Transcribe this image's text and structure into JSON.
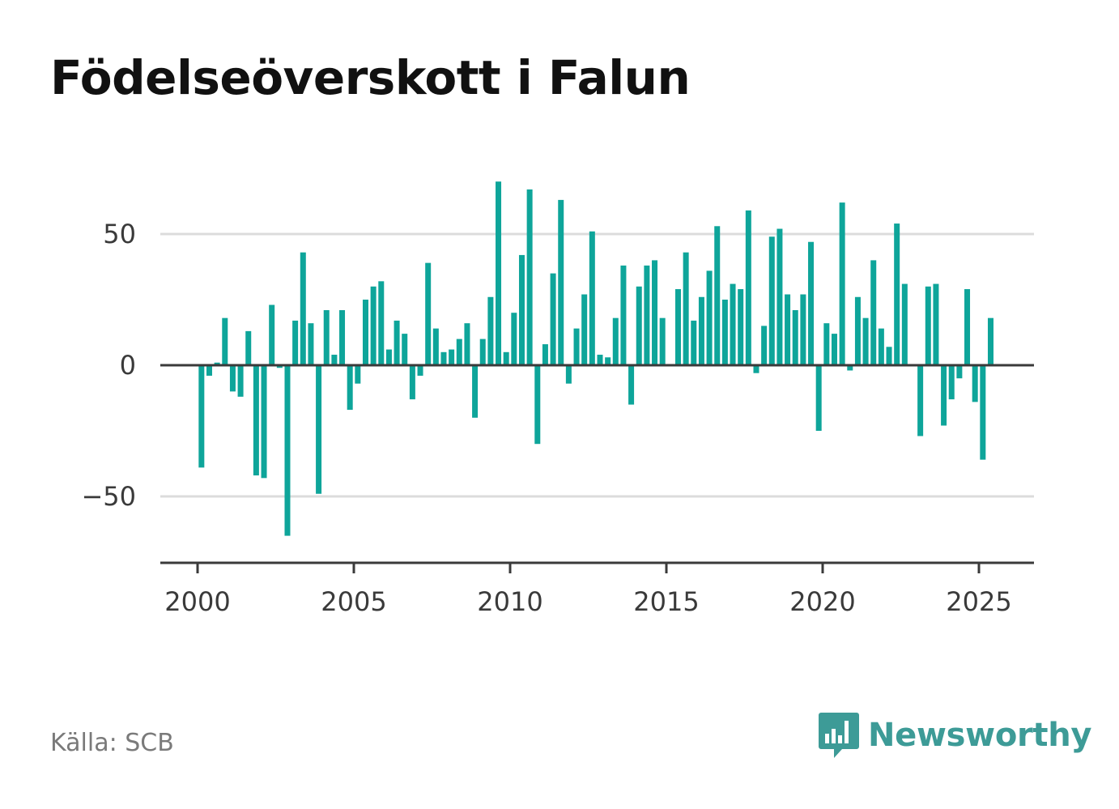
{
  "title": "Födelseöverskott i Falun",
  "source": "Källa: SCB",
  "logo_text": "Newsworthy",
  "logo_icon": "bar-chart-speech-bubble-icon",
  "colors": {
    "bar": "#0ea59a",
    "grid": "#dcdcdc",
    "axis": "#3a3a3a",
    "brand": "#3d9b97"
  },
  "chart_data": {
    "type": "bar",
    "title": "Födelseöverskott i Falun",
    "xlabel": "",
    "ylabel": "",
    "x_tick_labels": [
      "2000",
      "2005",
      "2010",
      "2015",
      "2020",
      "2025"
    ],
    "x_ticks": [
      2000,
      2005,
      2010,
      2015,
      2020,
      2025
    ],
    "y_tick_labels": [
      "50",
      "0",
      "−50"
    ],
    "y_ticks": [
      50,
      0,
      -50
    ],
    "xlim": [
      1998.8,
      2026.8
    ],
    "ylim": [
      -75,
      75
    ],
    "grid": true,
    "x": [
      2000.125,
      2000.375,
      2000.625,
      2000.875,
      2001.125,
      2001.375,
      2001.625,
      2001.875,
      2002.125,
      2002.375,
      2002.625,
      2002.875,
      2003.125,
      2003.375,
      2003.625,
      2003.875,
      2004.125,
      2004.375,
      2004.625,
      2004.875,
      2005.125,
      2005.375,
      2005.625,
      2005.875,
      2006.125,
      2006.375,
      2006.625,
      2006.875,
      2007.125,
      2007.375,
      2007.625,
      2007.875,
      2008.125,
      2008.375,
      2008.625,
      2008.875,
      2009.125,
      2009.375,
      2009.625,
      2009.875,
      2010.125,
      2010.375,
      2010.625,
      2010.875,
      2011.125,
      2011.375,
      2011.625,
      2011.875,
      2012.125,
      2012.375,
      2012.625,
      2012.875,
      2013.125,
      2013.375,
      2013.625,
      2013.875,
      2014.125,
      2014.375,
      2014.625,
      2014.875,
      2015.125,
      2015.375,
      2015.625,
      2015.875,
      2016.125,
      2016.375,
      2016.625,
      2016.875,
      2017.125,
      2017.375,
      2017.625,
      2017.875,
      2018.125,
      2018.375,
      2018.625,
      2018.875,
      2019.125,
      2019.375,
      2019.625,
      2019.875,
      2020.125,
      2020.375,
      2020.625,
      2020.875,
      2021.125,
      2021.375,
      2021.625,
      2021.875,
      2022.125,
      2022.375,
      2022.625,
      2022.875,
      2023.125,
      2023.375,
      2023.625,
      2023.875,
      2024.125,
      2024.375,
      2024.625,
      2024.875,
      2025.125,
      2025.375
    ],
    "values": [
      -39,
      -4,
      1,
      18,
      -10,
      -12,
      13,
      -42,
      -43,
      23,
      -1,
      -65,
      17,
      43,
      16,
      -49,
      21,
      4,
      21,
      -17,
      -7,
      25,
      30,
      32,
      6,
      17,
      12,
      -13,
      -4,
      39,
      14,
      5,
      6,
      10,
      16,
      -20,
      10,
      26,
      70,
      5,
      20,
      42,
      67,
      -30,
      8,
      35,
      63,
      -7,
      14,
      27,
      51,
      4,
      3,
      18,
      38,
      -15,
      30,
      38,
      40,
      18,
      0,
      29,
      43,
      17,
      26,
      36,
      53,
      25,
      31,
      29,
      59,
      -3,
      15,
      49,
      52,
      27,
      21,
      27,
      47,
      -25,
      16,
      12,
      62,
      -2,
      26,
      18,
      40,
      14,
      7,
      54,
      31,
      0,
      -27,
      30,
      31,
      -23,
      -13,
      -5,
      29,
      -14,
      -36,
      18
    ]
  }
}
